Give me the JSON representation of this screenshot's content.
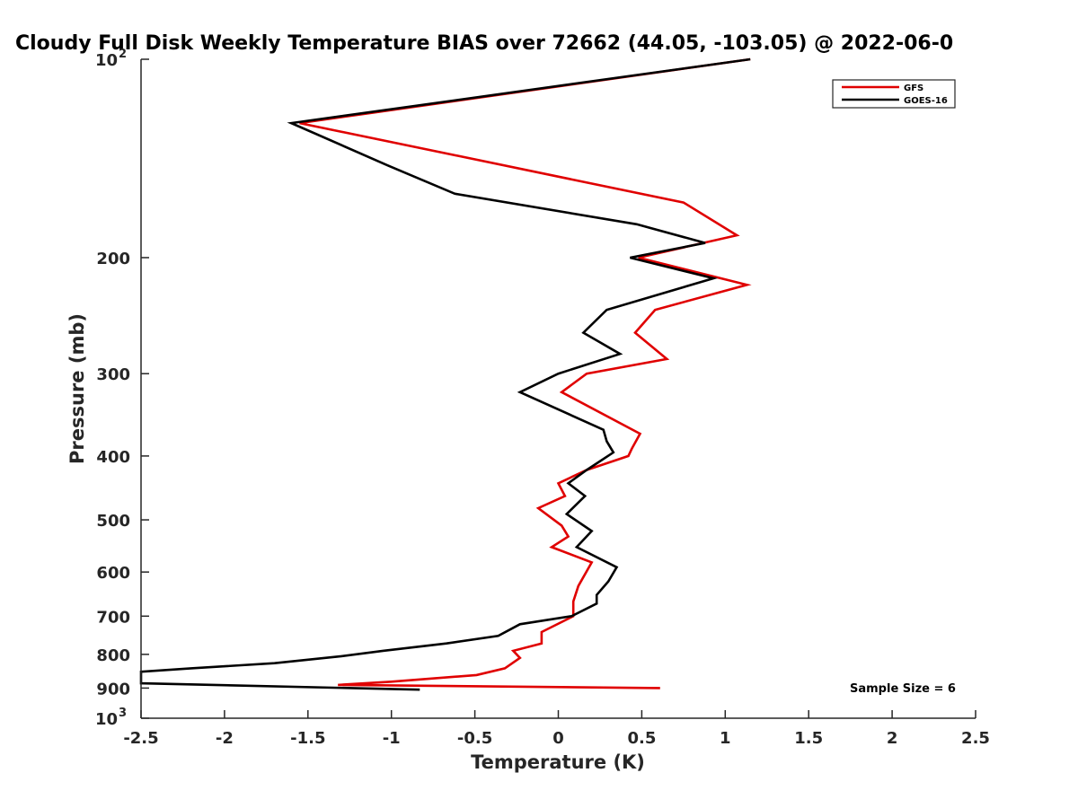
{
  "chart_data": {
    "type": "line",
    "title": "Cloudy Full Disk Weekly Temperature BIAS over 72662 (44.05, -103.05) @ 2022-06-0",
    "xlabel": "Temperature (K)",
    "ylabel": "Pressure (mb)",
    "xlim": [
      -2.5,
      2.5
    ],
    "ylim": [
      100,
      1000
    ],
    "y_scale": "log",
    "y_reversed": true,
    "xticks": [
      -2.5,
      -2,
      -1.5,
      -1,
      -0.5,
      0,
      0.5,
      1,
      1.5,
      2,
      2.5
    ],
    "xtick_labels": [
      "-2.5",
      "-2",
      "-1.5",
      "-1",
      "-0.5",
      "0",
      "0.5",
      "1",
      "1.5",
      "2",
      "2.5"
    ],
    "yticks": [
      {
        "value": 100,
        "label": "10",
        "sup": "2"
      },
      {
        "value": 200,
        "label": "200"
      },
      {
        "value": 300,
        "label": "300"
      },
      {
        "value": 400,
        "label": "400"
      },
      {
        "value": 500,
        "label": "500"
      },
      {
        "value": 600,
        "label": "600"
      },
      {
        "value": 700,
        "label": "700"
      },
      {
        "value": 800,
        "label": "800"
      },
      {
        "value": 900,
        "label": "900"
      },
      {
        "value": 1000,
        "label": "10",
        "sup": "3"
      }
    ],
    "grid": false,
    "legend_position": "top-right",
    "annotation": "Sample Size = 6",
    "series": [
      {
        "name": "GFS",
        "color": "#e00000",
        "points": [
          [
            1.15,
            100
          ],
          [
            -1.55,
            125
          ],
          [
            0.75,
            165
          ],
          [
            1.07,
            185
          ],
          [
            0.48,
            200
          ],
          [
            1.13,
            220
          ],
          [
            0.58,
            240
          ],
          [
            0.46,
            260
          ],
          [
            0.65,
            285
          ],
          [
            0.17,
            300
          ],
          [
            0.02,
            320
          ],
          [
            0.49,
            370
          ],
          [
            0.44,
            390
          ],
          [
            0.42,
            400
          ],
          [
            0.17,
            420
          ],
          [
            0.0,
            440
          ],
          [
            0.04,
            460
          ],
          [
            -0.12,
            480
          ],
          [
            0.02,
            510
          ],
          [
            0.06,
            530
          ],
          [
            -0.04,
            550
          ],
          [
            0.2,
            580
          ],
          [
            0.12,
            630
          ],
          [
            0.09,
            665
          ],
          [
            0.09,
            700
          ],
          [
            -0.1,
            740
          ],
          [
            -0.1,
            770
          ],
          [
            -0.27,
            790
          ],
          [
            -0.23,
            810
          ],
          [
            -0.32,
            840
          ],
          [
            -0.49,
            860
          ],
          [
            -1.0,
            880
          ],
          [
            -1.32,
            890
          ],
          [
            0.61,
            900
          ]
        ]
      },
      {
        "name": "GOES-16",
        "color": "#000000",
        "points": [
          [
            1.15,
            100
          ],
          [
            -1.6,
            125
          ],
          [
            -1.02,
            145
          ],
          [
            -0.62,
            160
          ],
          [
            0.47,
            178
          ],
          [
            0.88,
            190
          ],
          [
            0.43,
            200
          ],
          [
            0.93,
            215
          ],
          [
            0.29,
            240
          ],
          [
            0.15,
            260
          ],
          [
            0.37,
            280
          ],
          [
            0.0,
            300
          ],
          [
            -0.23,
            320
          ],
          [
            0.27,
            365
          ],
          [
            0.29,
            380
          ],
          [
            0.33,
            395
          ],
          [
            0.17,
            420
          ],
          [
            0.06,
            440
          ],
          [
            0.16,
            460
          ],
          [
            0.05,
            490
          ],
          [
            0.2,
            520
          ],
          [
            0.11,
            550
          ],
          [
            0.35,
            590
          ],
          [
            0.3,
            620
          ],
          [
            0.23,
            650
          ],
          [
            0.23,
            670
          ],
          [
            0.08,
            700
          ],
          [
            -0.23,
            720
          ],
          [
            -0.36,
            750
          ],
          [
            -0.67,
            770
          ],
          [
            -1.05,
            790
          ],
          [
            -1.3,
            805
          ],
          [
            -1.7,
            825
          ],
          [
            -2.2,
            840
          ],
          [
            -2.6,
            850
          ],
          [
            -2.6,
            885
          ],
          [
            -0.83,
            905
          ]
        ]
      }
    ]
  }
}
